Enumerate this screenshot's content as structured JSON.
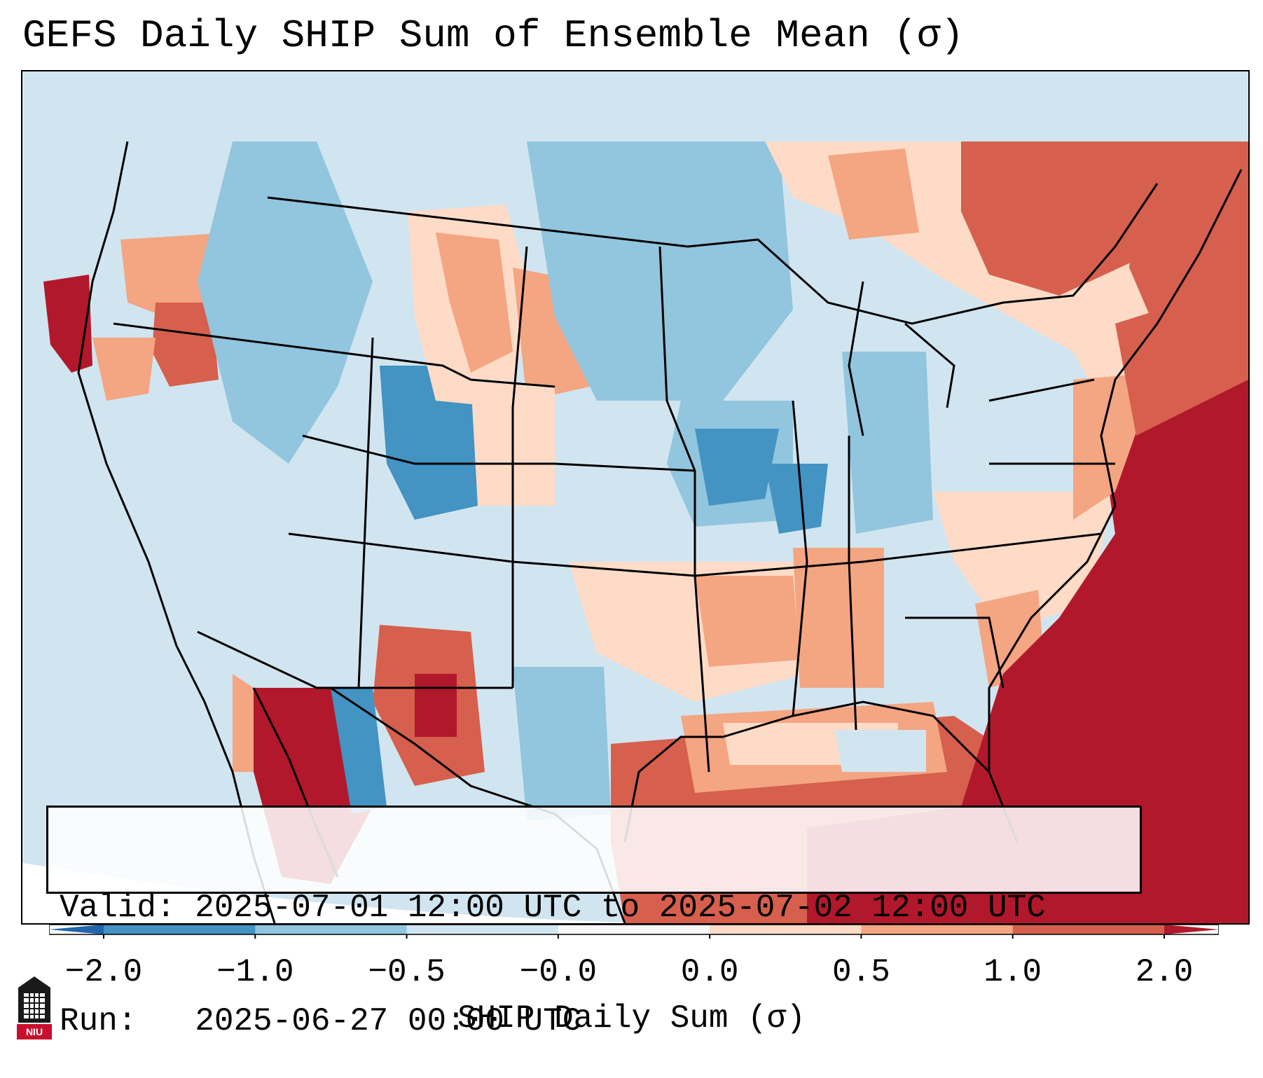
{
  "title": "GEFS Daily SHIP Sum of Ensemble Mean (σ)",
  "info": {
    "valid": "Valid: 2025-07-01 12:00 UTC to 2025-07-02 12:00 UTC",
    "run": "Run:   2025-06-27 00:00 UTC"
  },
  "colorbar": {
    "label": "SHIP Daily Sum (σ)",
    "ticks": [
      "−2.0",
      "−1.0",
      "−0.5",
      "−0.0",
      "0.0",
      "0.5",
      "1.0",
      "2.0"
    ],
    "colors": [
      "#4393c3",
      "#92c5de",
      "#d1e5f0",
      "#f7f7f7",
      "#fddbc7",
      "#f4a582",
      "#d6604d"
    ],
    "under_color": "#2166ac",
    "over_color": "#b2182b"
  },
  "logo": {
    "text": "NIU",
    "icon": "niu-logo-icon"
  }
}
